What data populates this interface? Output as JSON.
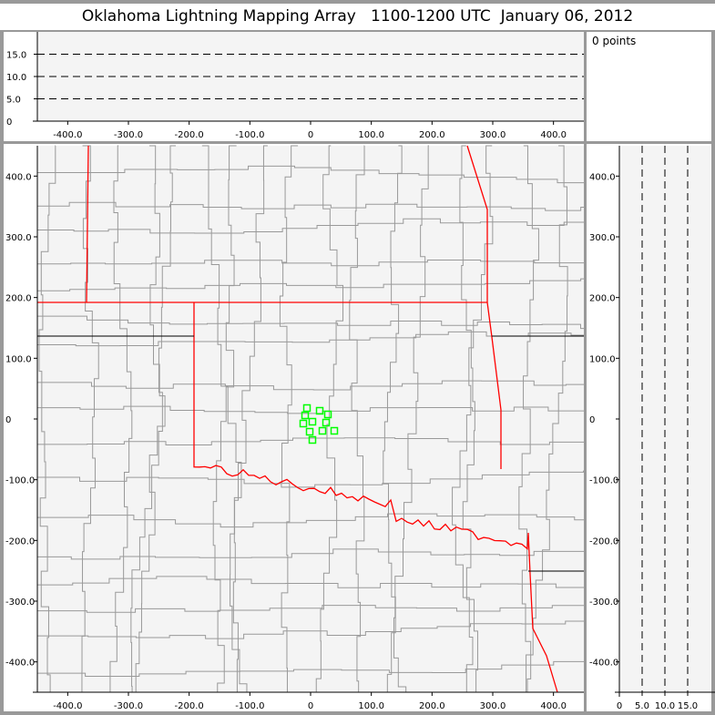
{
  "title": "Oklahoma Lightning Mapping Array   1100-1200 UTC  January 06, 2012",
  "info": {
    "points_label": "0 points"
  },
  "colors": {
    "background": "#f4f4f4",
    "state_border": "#ff0000",
    "county_line": "#999999",
    "points": "#00ff00"
  },
  "chart_data": [
    {
      "type": "scatter",
      "panel": "altitude-vs-east",
      "xlim": [
        -450,
        450
      ],
      "ylim": [
        0,
        20
      ],
      "xticks": [
        "-400.0",
        "-300.0",
        "-200.0",
        "-100.0",
        "0",
        "100.0",
        "200.0",
        "300.0",
        "400.0"
      ],
      "yticks": [
        "0",
        "5.0",
        "10.0",
        "15.0"
      ],
      "dashed_grid_y": [
        5,
        10,
        15
      ],
      "points": []
    },
    {
      "type": "scatter",
      "panel": "plan-view-map",
      "xlim": [
        -450,
        450
      ],
      "ylim": [
        -450,
        450
      ],
      "xticks": [
        "-400.0",
        "-300.0",
        "-200.0",
        "-100.0",
        "0",
        "100.0",
        "200.0",
        "300.0",
        "400.0"
      ],
      "yticks": [
        "-400.0",
        "-300.0",
        "-200.0",
        "-100.0",
        "0",
        "100.0",
        "200.0",
        "300.0",
        "400.0"
      ],
      "marker": "hollow-square",
      "points": [
        [
          -6,
          18
        ],
        [
          15,
          13.5
        ],
        [
          -9,
          6
        ],
        [
          28.5,
          7.5
        ],
        [
          3,
          -4.5
        ],
        [
          25.5,
          -6
        ],
        [
          -12,
          -7.5
        ],
        [
          -1.5,
          -21
        ],
        [
          19.5,
          -19.5
        ],
        [
          39,
          -19.5
        ],
        [
          3,
          -34.5
        ]
      ]
    },
    {
      "type": "scatter",
      "panel": "north-vs-altitude",
      "xlim": [
        0,
        20
      ],
      "ylim": [
        -450,
        450
      ],
      "xticks": [
        "0",
        "5.0",
        "10.0",
        "15.0"
      ],
      "yticks": [
        "-400.0",
        "-300.0",
        "-200.0",
        "-100.0",
        "0",
        "100.0",
        "200.0",
        "300.0",
        "400.0"
      ],
      "dashed_grid_x": [
        5,
        10,
        15
      ],
      "points": []
    }
  ]
}
